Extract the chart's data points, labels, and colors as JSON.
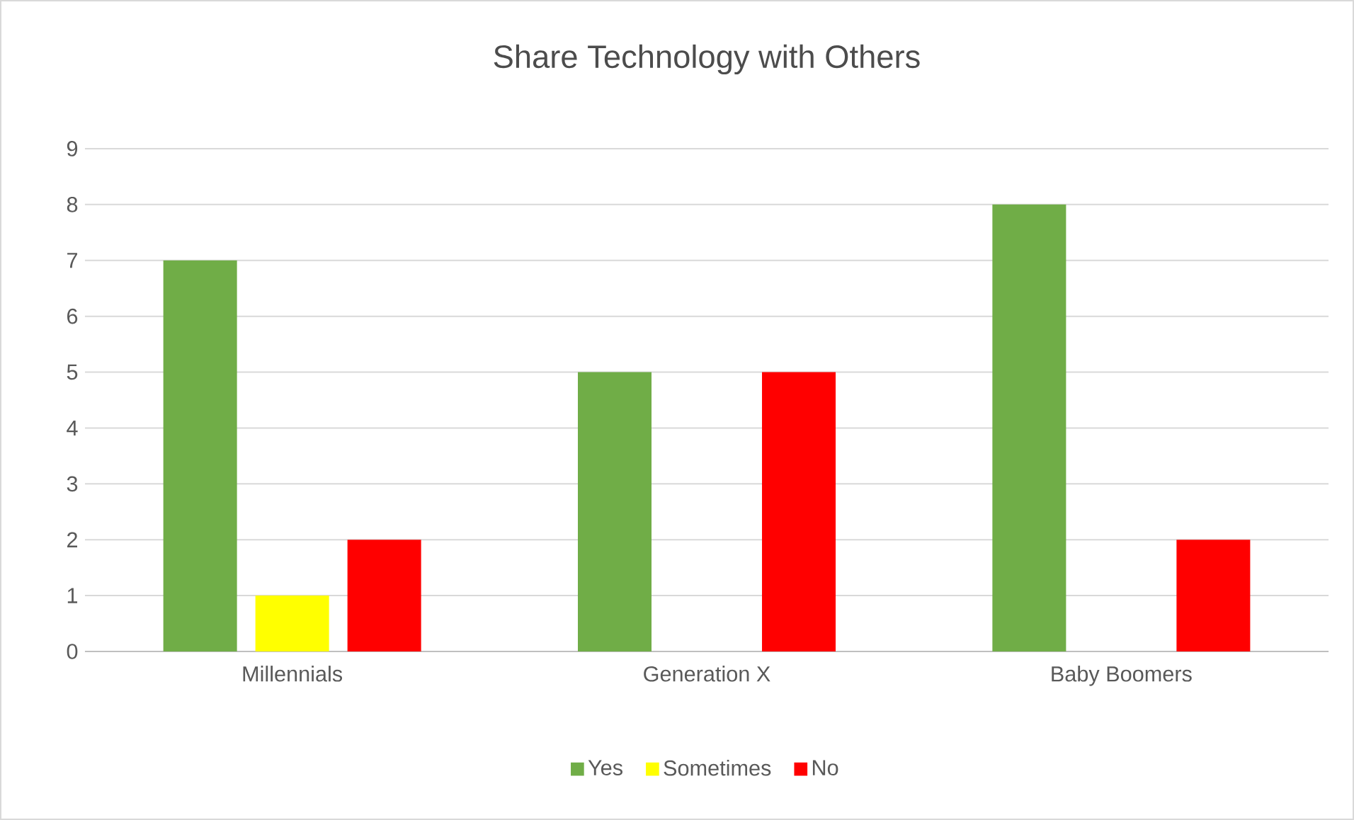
{
  "chart_data": {
    "type": "bar",
    "title": "Share Technology with Others",
    "categories": [
      "Millennials",
      "Generation X",
      "Baby Boomers"
    ],
    "series": [
      {
        "name": "Yes",
        "color": "#70ad47",
        "values": [
          7,
          5,
          8
        ]
      },
      {
        "name": "Sometimes",
        "color": "#ffff00",
        "values": [
          1,
          0,
          0
        ]
      },
      {
        "name": "No",
        "color": "#ff0000",
        "values": [
          2,
          5,
          2
        ]
      }
    ],
    "ylim": [
      0,
      9
    ],
    "yticks": [
      0,
      1,
      2,
      3,
      4,
      5,
      6,
      7,
      8,
      9
    ],
    "grid": "y",
    "legend": "bottom"
  }
}
